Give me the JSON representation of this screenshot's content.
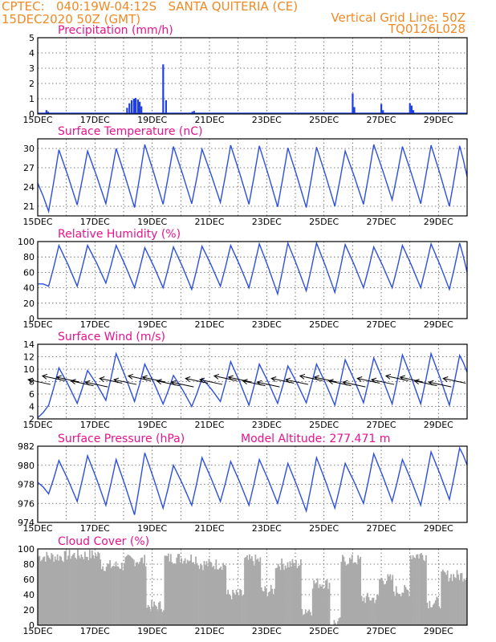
{
  "header": {
    "line1_left": "CPTEC:   040:19W-04:12S   SANTA QUITERIA (CE)",
    "line2_left": "15DEC2020 50Z (GMT)",
    "line1_right": "Vertical Grid Line: 50Z",
    "line2_right": "TQ0126L028"
  },
  "chart_data": [
    {
      "type": "bar",
      "title": "Precipitation  (mm/h)",
      "x_tick_labels": [
        "15DEC",
        "17DEC",
        "19DEC",
        "21DEC",
        "23DEC",
        "25DEC",
        "27DEC",
        "29DEC"
      ],
      "ylim": [
        0,
        5
      ],
      "yticks": [
        0,
        1,
        2,
        3,
        4,
        5
      ],
      "x_units": "days since 15DEC2020 00Z",
      "bars": [
        {
          "x": 0.3,
          "v": 0.25
        },
        {
          "x": 0.36,
          "v": 0.15
        },
        {
          "x": 3.12,
          "v": 0.4
        },
        {
          "x": 3.2,
          "v": 0.7
        },
        {
          "x": 3.28,
          "v": 0.9
        },
        {
          "x": 3.36,
          "v": 1.0
        },
        {
          "x": 3.42,
          "v": 1.05
        },
        {
          "x": 3.5,
          "v": 0.95
        },
        {
          "x": 3.56,
          "v": 0.8
        },
        {
          "x": 3.62,
          "v": 0.5
        },
        {
          "x": 4.38,
          "v": 3.25
        },
        {
          "x": 4.48,
          "v": 0.9
        },
        {
          "x": 5.4,
          "v": 0.15
        },
        {
          "x": 5.46,
          "v": 0.2
        },
        {
          "x": 11.0,
          "v": 1.35
        },
        {
          "x": 11.06,
          "v": 0.45
        },
        {
          "x": 12.0,
          "v": 0.65
        },
        {
          "x": 12.06,
          "v": 0.25
        },
        {
          "x": 13.0,
          "v": 0.7
        },
        {
          "x": 13.06,
          "v": 0.55
        },
        {
          "x": 13.12,
          "v": 0.25
        }
      ]
    },
    {
      "type": "line",
      "title": "Surface Temperature (nC)",
      "x_tick_labels": [
        "15DEC",
        "17DEC",
        "19DEC",
        "21DEC",
        "23DEC",
        "25DEC",
        "27DEC",
        "29DEC"
      ],
      "ylim": [
        19.5,
        31.5
      ],
      "yticks": [
        21,
        24,
        27,
        30
      ],
      "daily_max": [
        29.8,
        29.6,
        30.0,
        30.6,
        30.3,
        29.9,
        30.5,
        30.4,
        30.1,
        30.2,
        29.6,
        30.6,
        30.3,
        30.5,
        30.4
      ],
      "daily_min": [
        20.2,
        21.2,
        21.4,
        20.8,
        21.3,
        21.4,
        21.6,
        21.3,
        20.9,
        20.8,
        21.0,
        21.3,
        22.0,
        21.4,
        21.0
      ],
      "first_value": 24.6,
      "last_value": 25.6
    },
    {
      "type": "line",
      "title": "Relative Humidity (%)",
      "x_tick_labels": [
        "15DEC",
        "17DEC",
        "19DEC",
        "21DEC",
        "23DEC",
        "25DEC",
        "27DEC",
        "29DEC"
      ],
      "ylim": [
        0,
        100
      ],
      "yticks": [
        0,
        20,
        40,
        60,
        80,
        100
      ],
      "daily_max": [
        95,
        95,
        95,
        92,
        93,
        94,
        95,
        97,
        98,
        98,
        96,
        93,
        95,
        97,
        98
      ],
      "daily_min": [
        42,
        42,
        46,
        40,
        40,
        38,
        42,
        40,
        32,
        36,
        34,
        40,
        40,
        40,
        38
      ],
      "first_value": 45,
      "last_value": 60
    },
    {
      "type": "line",
      "title": "Surface Wind (m/s)",
      "x_tick_labels": [
        "15DEC",
        "17DEC",
        "19DEC",
        "21DEC",
        "23DEC",
        "25DEC",
        "27DEC",
        "29DEC"
      ],
      "ylim": [
        2,
        14
      ],
      "yticks": [
        2,
        4,
        6,
        8,
        10,
        12,
        14
      ],
      "daily_max": [
        10.2,
        9.8,
        12.5,
        10.8,
        9.0,
        8.5,
        11.2,
        10.8,
        10.5,
        10.8,
        11.5,
        11.8,
        12.3,
        12.5,
        12.2
      ],
      "daily_min": [
        4.2,
        4.5,
        5.0,
        4.8,
        4.4,
        4.0,
        4.8,
        4.2,
        4.5,
        4.6,
        4.2,
        4.6,
        4.4,
        4.4,
        4.2
      ],
      "first_value": 2.2,
      "last_value": 9.5,
      "wind_arrows": "present"
    },
    {
      "type": "line",
      "title": "Surface Pressure (hPa)",
      "annotation": "Model Altitude: 277.471  m",
      "x_tick_labels": [
        "15DEC",
        "17DEC",
        "19DEC",
        "21DEC",
        "23DEC",
        "25DEC",
        "27DEC",
        "29DEC"
      ],
      "ylim": [
        974,
        982
      ],
      "yticks": [
        974,
        976,
        978,
        980,
        982
      ],
      "daily_max": [
        980.5,
        981.0,
        980.6,
        981.3,
        980.0,
        980.8,
        980.4,
        980.6,
        980.2,
        980.8,
        980.2,
        981.2,
        980.6,
        981.4,
        981.8
      ],
      "daily_min": [
        977.0,
        976.2,
        975.8,
        974.8,
        975.5,
        975.8,
        976.2,
        975.8,
        976.0,
        975.2,
        975.5,
        976.0,
        976.2,
        975.8,
        976.4
      ],
      "first_value": 978.2,
      "last_value": 980.0
    },
    {
      "type": "bar",
      "title": "Cloud Cover (%)",
      "x_tick_labels": [
        "15DEC",
        "17DEC",
        "19DEC",
        "21DEC",
        "23DEC",
        "25DEC",
        "27DEC",
        "29DEC"
      ],
      "ylim": [
        0,
        100
      ],
      "yticks": [
        0,
        20,
        40,
        60,
        80,
        100
      ],
      "profile_segments": [
        {
          "from": 0.0,
          "to": 1.0,
          "level": 90
        },
        {
          "from": 1.0,
          "to": 2.2,
          "level": 92
        },
        {
          "from": 2.2,
          "to": 3.0,
          "level": 78
        },
        {
          "from": 3.0,
          "to": 3.8,
          "level": 85
        },
        {
          "from": 3.8,
          "to": 4.4,
          "level": 25
        },
        {
          "from": 4.4,
          "to": 5.6,
          "level": 88
        },
        {
          "from": 5.6,
          "to": 6.6,
          "level": 80
        },
        {
          "from": 6.6,
          "to": 7.2,
          "level": 40
        },
        {
          "from": 7.2,
          "to": 7.8,
          "level": 85
        },
        {
          "from": 7.8,
          "to": 8.3,
          "level": 45
        },
        {
          "from": 8.3,
          "to": 9.2,
          "level": 80
        },
        {
          "from": 9.2,
          "to": 9.6,
          "level": 20
        },
        {
          "from": 9.6,
          "to": 10.2,
          "level": 55
        },
        {
          "from": 10.2,
          "to": 10.6,
          "level": 3
        },
        {
          "from": 10.6,
          "to": 11.3,
          "level": 85
        },
        {
          "from": 11.3,
          "to": 11.9,
          "level": 35
        },
        {
          "from": 11.9,
          "to": 12.4,
          "level": 60
        },
        {
          "from": 12.4,
          "to": 13.0,
          "level": 45
        },
        {
          "from": 13.0,
          "to": 13.6,
          "level": 92
        },
        {
          "from": 13.6,
          "to": 14.1,
          "level": 30
        },
        {
          "from": 14.1,
          "to": 15.0,
          "level": 65
        }
      ]
    }
  ]
}
